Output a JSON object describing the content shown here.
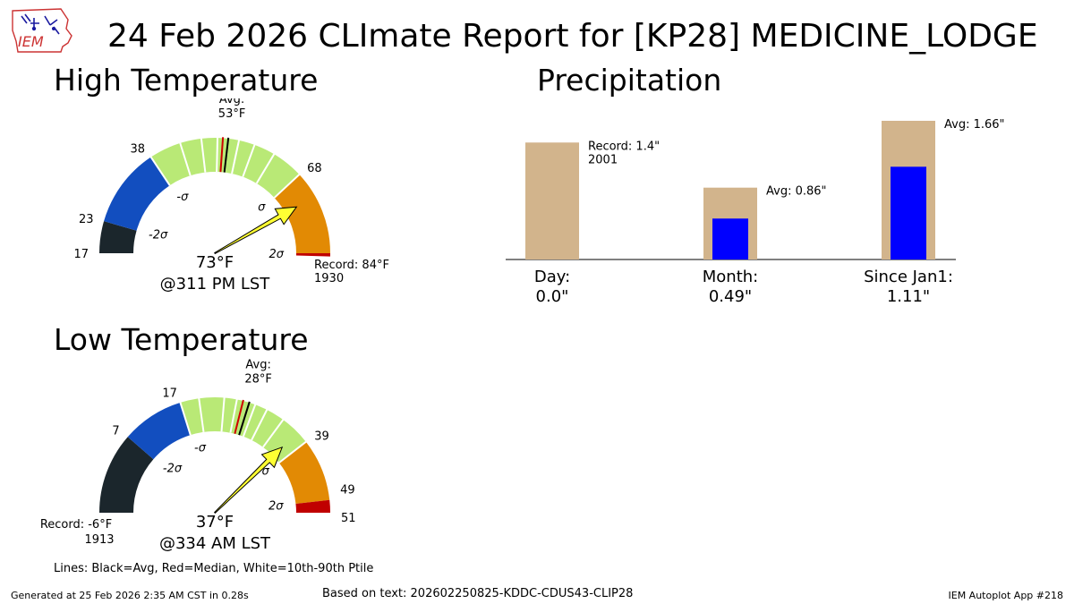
{
  "title": "24 Feb 2026 CLImate Report for [KP28] MEDICINE_LODGE",
  "logo": {
    "text": "IEM"
  },
  "sections": {
    "high": "High Temperature",
    "low": "Low Temperature",
    "precip": "Precipitation"
  },
  "colors": {
    "below2": "#1b262c",
    "below1": "#124ebf",
    "normal": "#b9e976",
    "above1": "#e28a04",
    "above2": "#c00000",
    "precip_bg": "#d2b48c",
    "precip_val": "#0000ff",
    "needle": "#ffff33"
  },
  "chart_data": [
    {
      "type": "gauge",
      "name": "high_temperature",
      "range": [
        17,
        84
      ],
      "observed": 73,
      "observed_label": "73°F",
      "time_label": "@311 PM LST",
      "avg_label": "Avg:",
      "avg_value_label": "53°F",
      "average": 53,
      "median": 52,
      "percentile_lines": [
        38,
        44,
        48,
        51,
        55,
        58,
        62,
        68
      ],
      "bands": [
        {
          "from": 17,
          "to": 23,
          "color": "below2"
        },
        {
          "from": 23,
          "to": 38,
          "color": "below1"
        },
        {
          "from": 38,
          "to": 68,
          "color": "normal"
        },
        {
          "from": 68,
          "to": 84,
          "color": "above1"
        },
        {
          "from": 84,
          "to": 84.6,
          "color": "above2"
        }
      ],
      "tick_labels": [
        {
          "value": 17,
          "text": "17"
        },
        {
          "value": 23,
          "text": "23"
        },
        {
          "value": 38,
          "text": "38"
        },
        {
          "value": 68,
          "text": "68"
        }
      ],
      "sigma_labels": [
        {
          "value": 23,
          "text": "-2σ"
        },
        {
          "value": 38,
          "text": "-σ"
        },
        {
          "value": 68,
          "text": "σ"
        },
        {
          "value": 84,
          "text": "2σ"
        }
      ],
      "record_label": "Record: 84°F",
      "record_year": "1930"
    },
    {
      "type": "gauge",
      "name": "low_temperature",
      "range": [
        -6,
        51
      ],
      "observed": 37,
      "observed_label": "37°F",
      "time_label": "@334 AM LST",
      "avg_label": "Avg:",
      "avg_value_label": "28°F",
      "average": 28,
      "median": 27,
      "percentile_lines": [
        17,
        20,
        24,
        26,
        29,
        31,
        34,
        39
      ],
      "bands": [
        {
          "from": -6,
          "to": 7,
          "color": "below2"
        },
        {
          "from": 7,
          "to": 17,
          "color": "below1"
        },
        {
          "from": 17,
          "to": 39,
          "color": "normal"
        },
        {
          "from": 39,
          "to": 49,
          "color": "above1"
        },
        {
          "from": 49,
          "to": 51,
          "color": "above2"
        }
      ],
      "tick_labels": [
        {
          "value": 7,
          "text": "7"
        },
        {
          "value": 17,
          "text": "17"
        },
        {
          "value": 39,
          "text": "39"
        },
        {
          "value": 49,
          "text": "49"
        },
        {
          "value": 51,
          "text": "51"
        }
      ],
      "sigma_labels": [
        {
          "value": 7,
          "text": "-2σ"
        },
        {
          "value": 17,
          "text": "-σ"
        },
        {
          "value": 39,
          "text": "σ"
        },
        {
          "value": 49,
          "text": "2σ"
        }
      ],
      "record_label": "Record: -6°F",
      "record_year": "1913"
    },
    {
      "type": "bar",
      "name": "precipitation",
      "categories": [
        "Day:",
        "Month:",
        "Since Jan1:"
      ],
      "value_labels": [
        "0.0\"",
        "0.49\"",
        "1.11\""
      ],
      "values": [
        0.0,
        0.49,
        1.11
      ],
      "reference_values": [
        1.4,
        0.86,
        1.66
      ],
      "reference_labels": [
        {
          "line1": "Record: 1.4\"",
          "line2": "2001"
        },
        {
          "line1": "Avg: 0.86\"",
          "line2": ""
        },
        {
          "line1": "Avg: 1.66\"",
          "line2": ""
        }
      ]
    }
  ],
  "legend_note": "Lines: Black=Avg, Red=Median, White=10th-90th Ptile",
  "footer": {
    "generated": "Generated at 25 Feb 2026 2:35 AM CST in 0.28s",
    "based_on": "Based on text: 202602250825-KDDC-CDUS43-CLIP28",
    "app": "IEM Autoplot App #218"
  }
}
